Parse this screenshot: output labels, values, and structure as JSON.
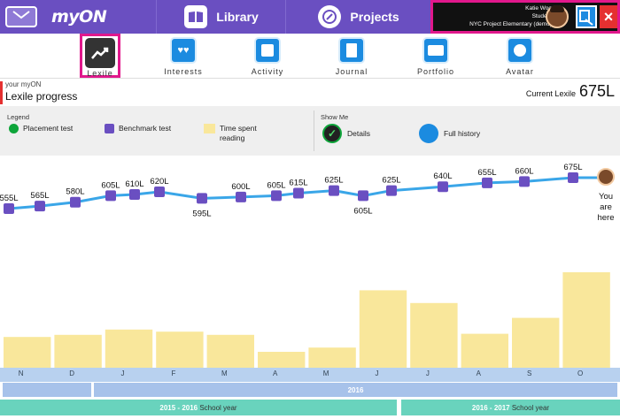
{
  "app": {
    "brand": "myON"
  },
  "nav": {
    "library": "Library",
    "projects": "Projects"
  },
  "user": {
    "name": "Katie Woo",
    "role": "Student",
    "school": "NYC Project Elementary (demo)"
  },
  "tabs": [
    {
      "label": "Lexile",
      "icon": "chart-trend-icon",
      "active": true
    },
    {
      "label": "Interests",
      "icon": "hearts-icon"
    },
    {
      "label": "Activity",
      "icon": "activity-icon"
    },
    {
      "label": "Journal",
      "icon": "journal-icon"
    },
    {
      "label": "Portfolio",
      "icon": "folder-icon"
    },
    {
      "label": "Avatar",
      "icon": "avatar-icon"
    }
  ],
  "header": {
    "kicker": "your myON",
    "title": "Lexile progress",
    "current_label": "Current Lexile",
    "current_value": "675L"
  },
  "legend": {
    "title": "Legend",
    "placement": "Placement test",
    "benchmark": "Benchmark test",
    "time_line1": "Time spent",
    "time_line2": "reading"
  },
  "show_me": {
    "title": "Show Me",
    "details": "Details",
    "full_history": "Full history"
  },
  "you_are_here": [
    "You",
    "are",
    "here"
  ],
  "colors": {
    "topbar": "#6a4fc1",
    "accent": "#e1188c",
    "line": "#3aa6e8",
    "marker": "#6a4fc1",
    "bar": "#f9e79b",
    "month_band": "#b8d1ef",
    "school_year": "#69d3bd",
    "year_band": "#a7c2ea"
  },
  "chart_data": {
    "type": "line",
    "lexile_labels": [
      "555L",
      "565L",
      "580L",
      "605L",
      "610L",
      "620L",
      "595L",
      "600L",
      "605L",
      "615L",
      "625L",
      "605L",
      "625L",
      "640L",
      "655L",
      "660L",
      "675L"
    ],
    "lexile_values": [
      555,
      565,
      580,
      605,
      610,
      620,
      595,
      600,
      605,
      615,
      625,
      605,
      625,
      640,
      655,
      660,
      675
    ],
    "months": [
      "N",
      "D",
      "J",
      "F",
      "M",
      "A",
      "M",
      "J",
      "J",
      "A",
      "S",
      "O"
    ],
    "time_spent_relative": [
      0.29,
      0.31,
      0.36,
      0.34,
      0.31,
      0.15,
      0.19,
      0.73,
      0.61,
      0.32,
      0.47,
      0.9
    ],
    "years": [
      "2016"
    ],
    "school_years": [
      {
        "label": "2015 - 2016",
        "suffix": "School year"
      },
      {
        "label": "2016 - 2017",
        "suffix": "School year"
      }
    ]
  }
}
